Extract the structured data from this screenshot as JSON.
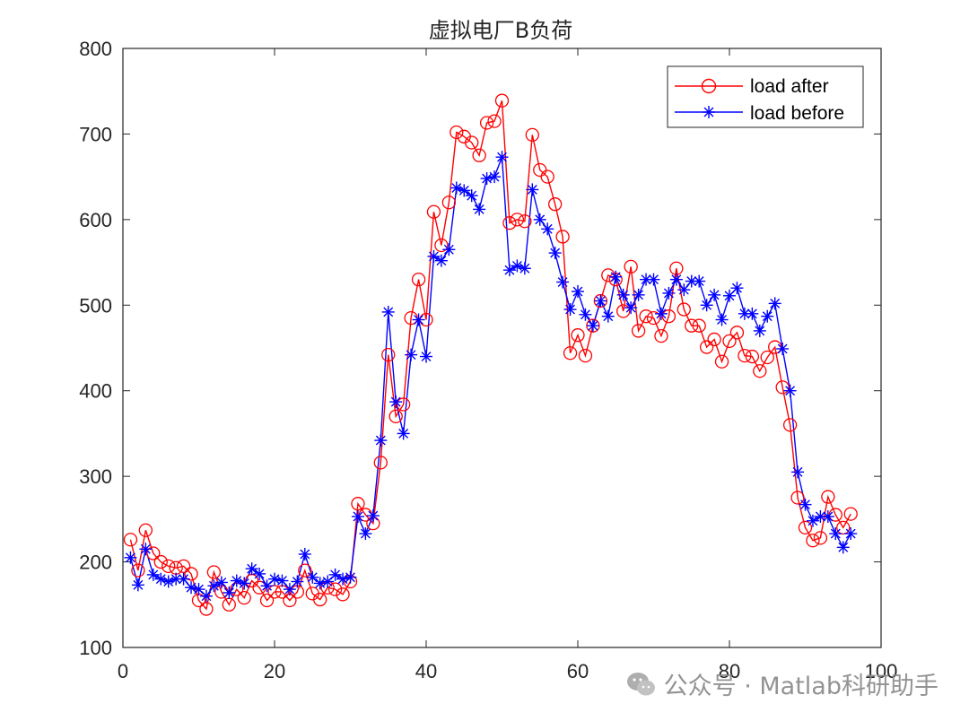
{
  "chart_data": {
    "type": "line",
    "title": "虚拟电厂B负荷",
    "xlabel": "",
    "ylabel": "",
    "xlim": [
      0,
      100
    ],
    "ylim": [
      100,
      800
    ],
    "xticks": [
      0,
      20,
      40,
      60,
      80,
      100
    ],
    "xtick_labels": [
      "0",
      "20",
      "40",
      "60",
      "80",
      "100"
    ],
    "yticks": [
      100,
      200,
      300,
      400,
      500,
      600,
      700,
      800
    ],
    "ytick_labels": [
      "100",
      "200",
      "300",
      "400",
      "500",
      "600",
      "700",
      "800"
    ],
    "grid": false,
    "legend_position": "top-right",
    "x": [
      1,
      2,
      3,
      4,
      5,
      6,
      7,
      8,
      9,
      10,
      11,
      12,
      13,
      14,
      15,
      16,
      17,
      18,
      19,
      20,
      21,
      22,
      23,
      24,
      25,
      26,
      27,
      28,
      29,
      30,
      31,
      32,
      33,
      34,
      35,
      36,
      37,
      38,
      39,
      40,
      41,
      42,
      43,
      44,
      45,
      46,
      47,
      48,
      49,
      50,
      51,
      52,
      53,
      54,
      55,
      56,
      57,
      58,
      59,
      60,
      61,
      62,
      63,
      64,
      65,
      66,
      67,
      68,
      69,
      70,
      71,
      72,
      73,
      74,
      75,
      76,
      77,
      78,
      79,
      80,
      81,
      82,
      83,
      84,
      85,
      86,
      87,
      88,
      89,
      90,
      91,
      92,
      93,
      94,
      95,
      96
    ],
    "series": [
      {
        "name": "load after",
        "color": "#ff0000",
        "marker": "circle",
        "values": [
          226,
          190,
          237,
          210,
          200,
          195,
          193,
          195,
          186,
          155,
          145,
          188,
          165,
          150,
          168,
          158,
          178,
          170,
          155,
          165,
          165,
          155,
          165,
          190,
          163,
          156,
          170,
          168,
          162,
          177,
          268,
          255,
          245,
          316,
          442,
          370,
          384,
          485,
          530,
          483,
          609,
          570,
          620,
          702,
          697,
          690,
          675,
          713,
          715,
          739,
          596,
          600,
          598,
          699,
          658,
          650,
          618,
          580,
          444,
          465,
          441,
          476,
          505,
          535,
          530,
          493,
          545,
          470,
          487,
          485,
          464,
          487,
          543,
          495,
          476,
          476,
          451,
          460,
          434,
          458,
          468,
          441,
          440,
          423,
          439,
          451,
          404,
          360,
          275,
          240,
          225,
          228,
          276,
          255,
          240,
          256
        ]
      },
      {
        "name": "load before",
        "color": "#0000ff",
        "marker": "asterisk",
        "values": [
          205,
          173,
          215,
          185,
          180,
          177,
          180,
          180,
          170,
          168,
          160,
          172,
          176,
          164,
          178,
          175,
          192,
          186,
          172,
          180,
          178,
          168,
          177,
          209,
          182,
          175,
          177,
          185,
          180,
          182,
          253,
          233,
          254,
          342,
          492,
          387,
          350,
          442,
          483,
          440,
          557,
          552,
          565,
          637,
          634,
          628,
          612,
          648,
          650,
          673,
          541,
          546,
          543,
          635,
          600,
          589,
          561,
          527,
          495,
          516,
          489,
          476,
          505,
          487,
          533,
          512,
          497,
          512,
          530,
          530,
          490,
          514,
          530,
          518,
          528,
          528,
          500,
          512,
          483,
          511,
          520,
          490,
          490,
          470,
          487,
          502,
          449,
          400,
          305,
          267,
          248,
          253,
          253,
          233,
          217,
          233
        ]
      }
    ]
  },
  "watermark": {
    "text": "公众号 · Matlab科研助手",
    "icon": "wechat-icon"
  }
}
